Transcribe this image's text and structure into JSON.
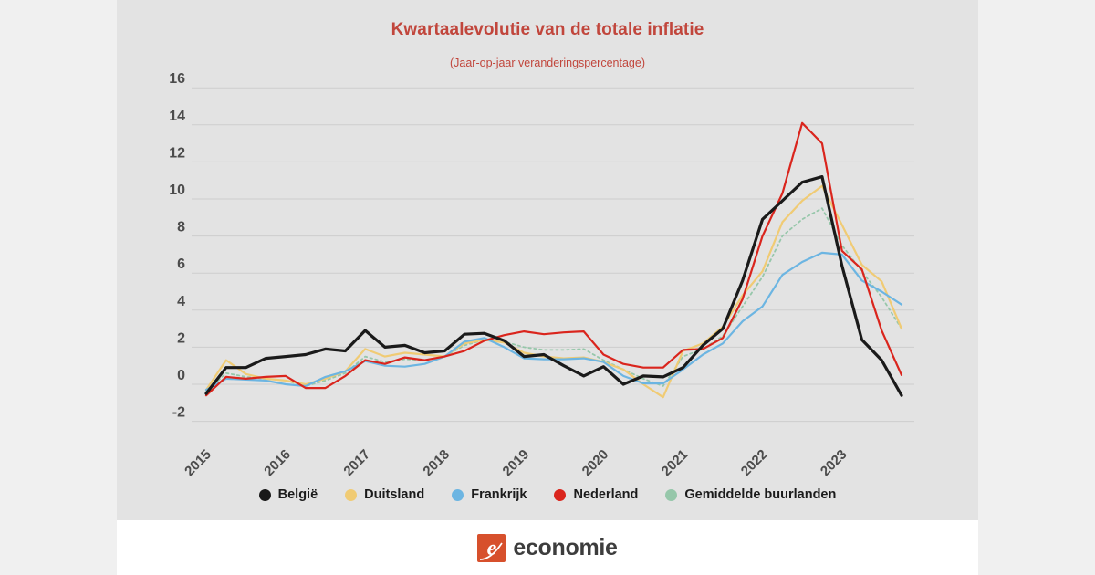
{
  "title": "Kwartaalevolutie van de totale inflatie",
  "subtitle": "(Jaar-op-jaar veranderingspercentage)",
  "colors": {
    "outer_background": "#f0f0f0",
    "panel_background": "#e3e3e3",
    "footer_background": "#ffffff",
    "title_text": "#c1463c",
    "grid_line": "#cecece",
    "axis_text": "#4c4c4c",
    "logo_mark": "#d7502c"
  },
  "logo": {
    "text": "economie",
    "mark_letter": "e"
  },
  "chart_data": {
    "type": "line",
    "title": "Kwartaalevolutie van de totale inflatie",
    "subtitle": "(Jaar-op-jaar veranderingspercentage)",
    "x_unit": "quarterly (2015 Q1 - 2023 Q4)",
    "x_tick_labels": [
      "2015",
      "2016",
      "2017",
      "2018",
      "2019",
      "2020",
      "2021",
      "2022",
      "2023"
    ],
    "y_ticks": [
      16,
      14,
      12,
      10,
      8,
      6,
      4,
      2,
      0,
      -2
    ],
    "ylim": [
      -2,
      16
    ],
    "grid": true,
    "legend_position": "bottom",
    "series": [
      {
        "name": "België",
        "color": "#1a1a1a",
        "style": "solid",
        "width": 3.2,
        "values": [
          -0.5,
          0.9,
          0.9,
          1.4,
          1.5,
          1.6,
          1.9,
          1.8,
          2.9,
          2.0,
          2.1,
          1.7,
          1.8,
          2.7,
          2.75,
          2.35,
          1.5,
          1.6,
          1.0,
          0.45,
          0.95,
          0.0,
          0.45,
          0.4,
          0.9,
          2.1,
          3.0,
          5.6,
          8.9,
          9.9,
          10.9,
          11.2,
          6.4,
          2.4,
          1.3,
          -0.6
        ]
      },
      {
        "name": "Duitsland",
        "color": "#f0cb74",
        "style": "solid",
        "width": 2.2,
        "values": [
          -0.3,
          1.3,
          0.55,
          0.3,
          0.2,
          0.0,
          0.3,
          0.7,
          1.9,
          1.5,
          1.7,
          1.6,
          1.5,
          2.2,
          2.4,
          2.25,
          1.7,
          1.5,
          1.4,
          1.45,
          1.2,
          0.8,
          0.0,
          -0.7,
          1.8,
          2.2,
          3.1,
          4.8,
          6.1,
          8.75,
          9.9,
          10.7,
          8.6,
          6.45,
          5.55,
          3.0
        ]
      },
      {
        "name": "Frankrijk",
        "color": "#6cb5e2",
        "style": "solid",
        "width": 2.2,
        "values": [
          -0.3,
          0.3,
          0.25,
          0.2,
          0.0,
          -0.1,
          0.4,
          0.7,
          1.25,
          1.0,
          0.95,
          1.1,
          1.5,
          2.3,
          2.5,
          2.0,
          1.4,
          1.35,
          1.35,
          1.4,
          1.2,
          0.45,
          0.05,
          0.05,
          0.8,
          1.6,
          2.2,
          3.4,
          4.2,
          5.9,
          6.6,
          7.1,
          7.0,
          5.6,
          5.0,
          4.3
        ]
      },
      {
        "name": "Nederland",
        "color": "#da251d",
        "style": "solid",
        "width": 2.2,
        "values": [
          -0.6,
          0.4,
          0.3,
          0.4,
          0.45,
          -0.2,
          -0.2,
          0.45,
          1.3,
          1.1,
          1.45,
          1.3,
          1.5,
          1.8,
          2.35,
          2.65,
          2.85,
          2.7,
          2.8,
          2.85,
          1.6,
          1.1,
          0.9,
          0.9,
          1.85,
          1.9,
          2.5,
          4.6,
          8.0,
          10.3,
          14.1,
          13.0,
          7.2,
          6.2,
          2.9,
          0.5
        ]
      },
      {
        "name": "Gemiddelde buurlanden",
        "color": "#96c7aa",
        "style": "dotted",
        "width": 1.8,
        "values": [
          -0.4,
          0.6,
          0.4,
          0.3,
          0.2,
          -0.1,
          0.2,
          0.6,
          1.5,
          1.2,
          1.35,
          1.3,
          1.5,
          2.1,
          2.4,
          2.3,
          2.0,
          1.85,
          1.85,
          1.9,
          1.3,
          0.8,
          0.3,
          -0.1,
          1.5,
          1.9,
          2.6,
          4.2,
          5.8,
          8.0,
          8.9,
          9.5,
          7.5,
          6.1,
          4.7,
          3.0
        ]
      }
    ]
  }
}
